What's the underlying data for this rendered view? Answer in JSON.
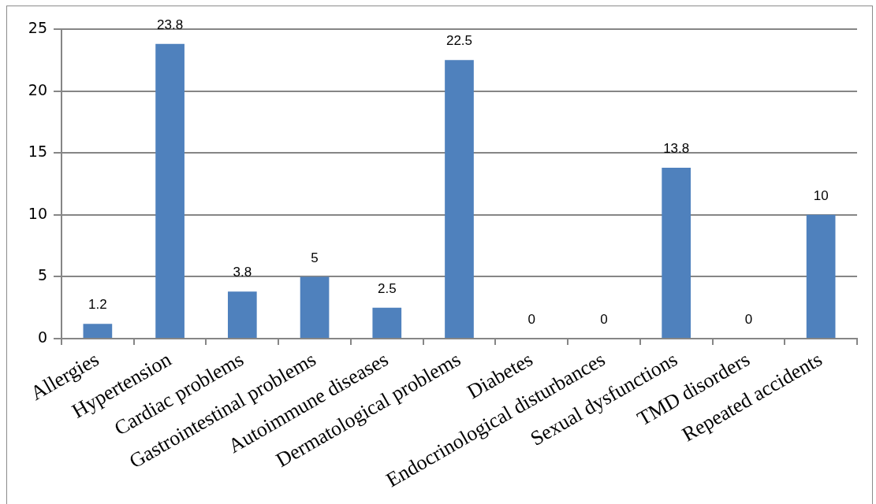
{
  "chart_data": {
    "type": "bar",
    "categories": [
      "Allergies",
      "Hypertension",
      "Cardiac problems",
      "Gastrointestinal problems",
      "Autoimmune diseases",
      "Dermatological problems",
      "Diabetes",
      "Endocrinological disturbances",
      "Sexual dysfunctions",
      "TMD disorders",
      "Repeated accidents"
    ],
    "values": [
      1.2,
      23.8,
      3.8,
      5,
      2.5,
      22.5,
      0,
      0,
      13.8,
      0,
      10
    ],
    "color": "#4f81bd",
    "ylim": [
      0,
      25
    ],
    "yticks": [
      0,
      5,
      10,
      15,
      20,
      25
    ],
    "grid": "y",
    "data_labels": true
  }
}
